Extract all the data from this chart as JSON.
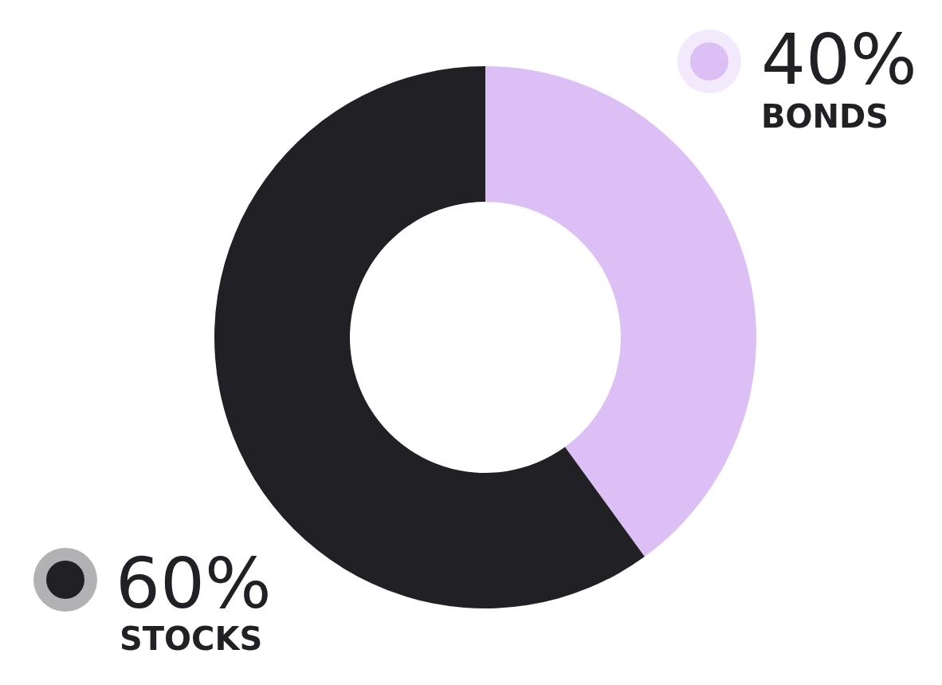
{
  "chart_data": {
    "type": "donut",
    "categories": [
      "BONDS",
      "STOCKS"
    ],
    "values": [
      40,
      60
    ],
    "colors": [
      "#dcc0f5",
      "#212024"
    ],
    "value_labels": [
      "40%",
      "60%"
    ]
  }
}
